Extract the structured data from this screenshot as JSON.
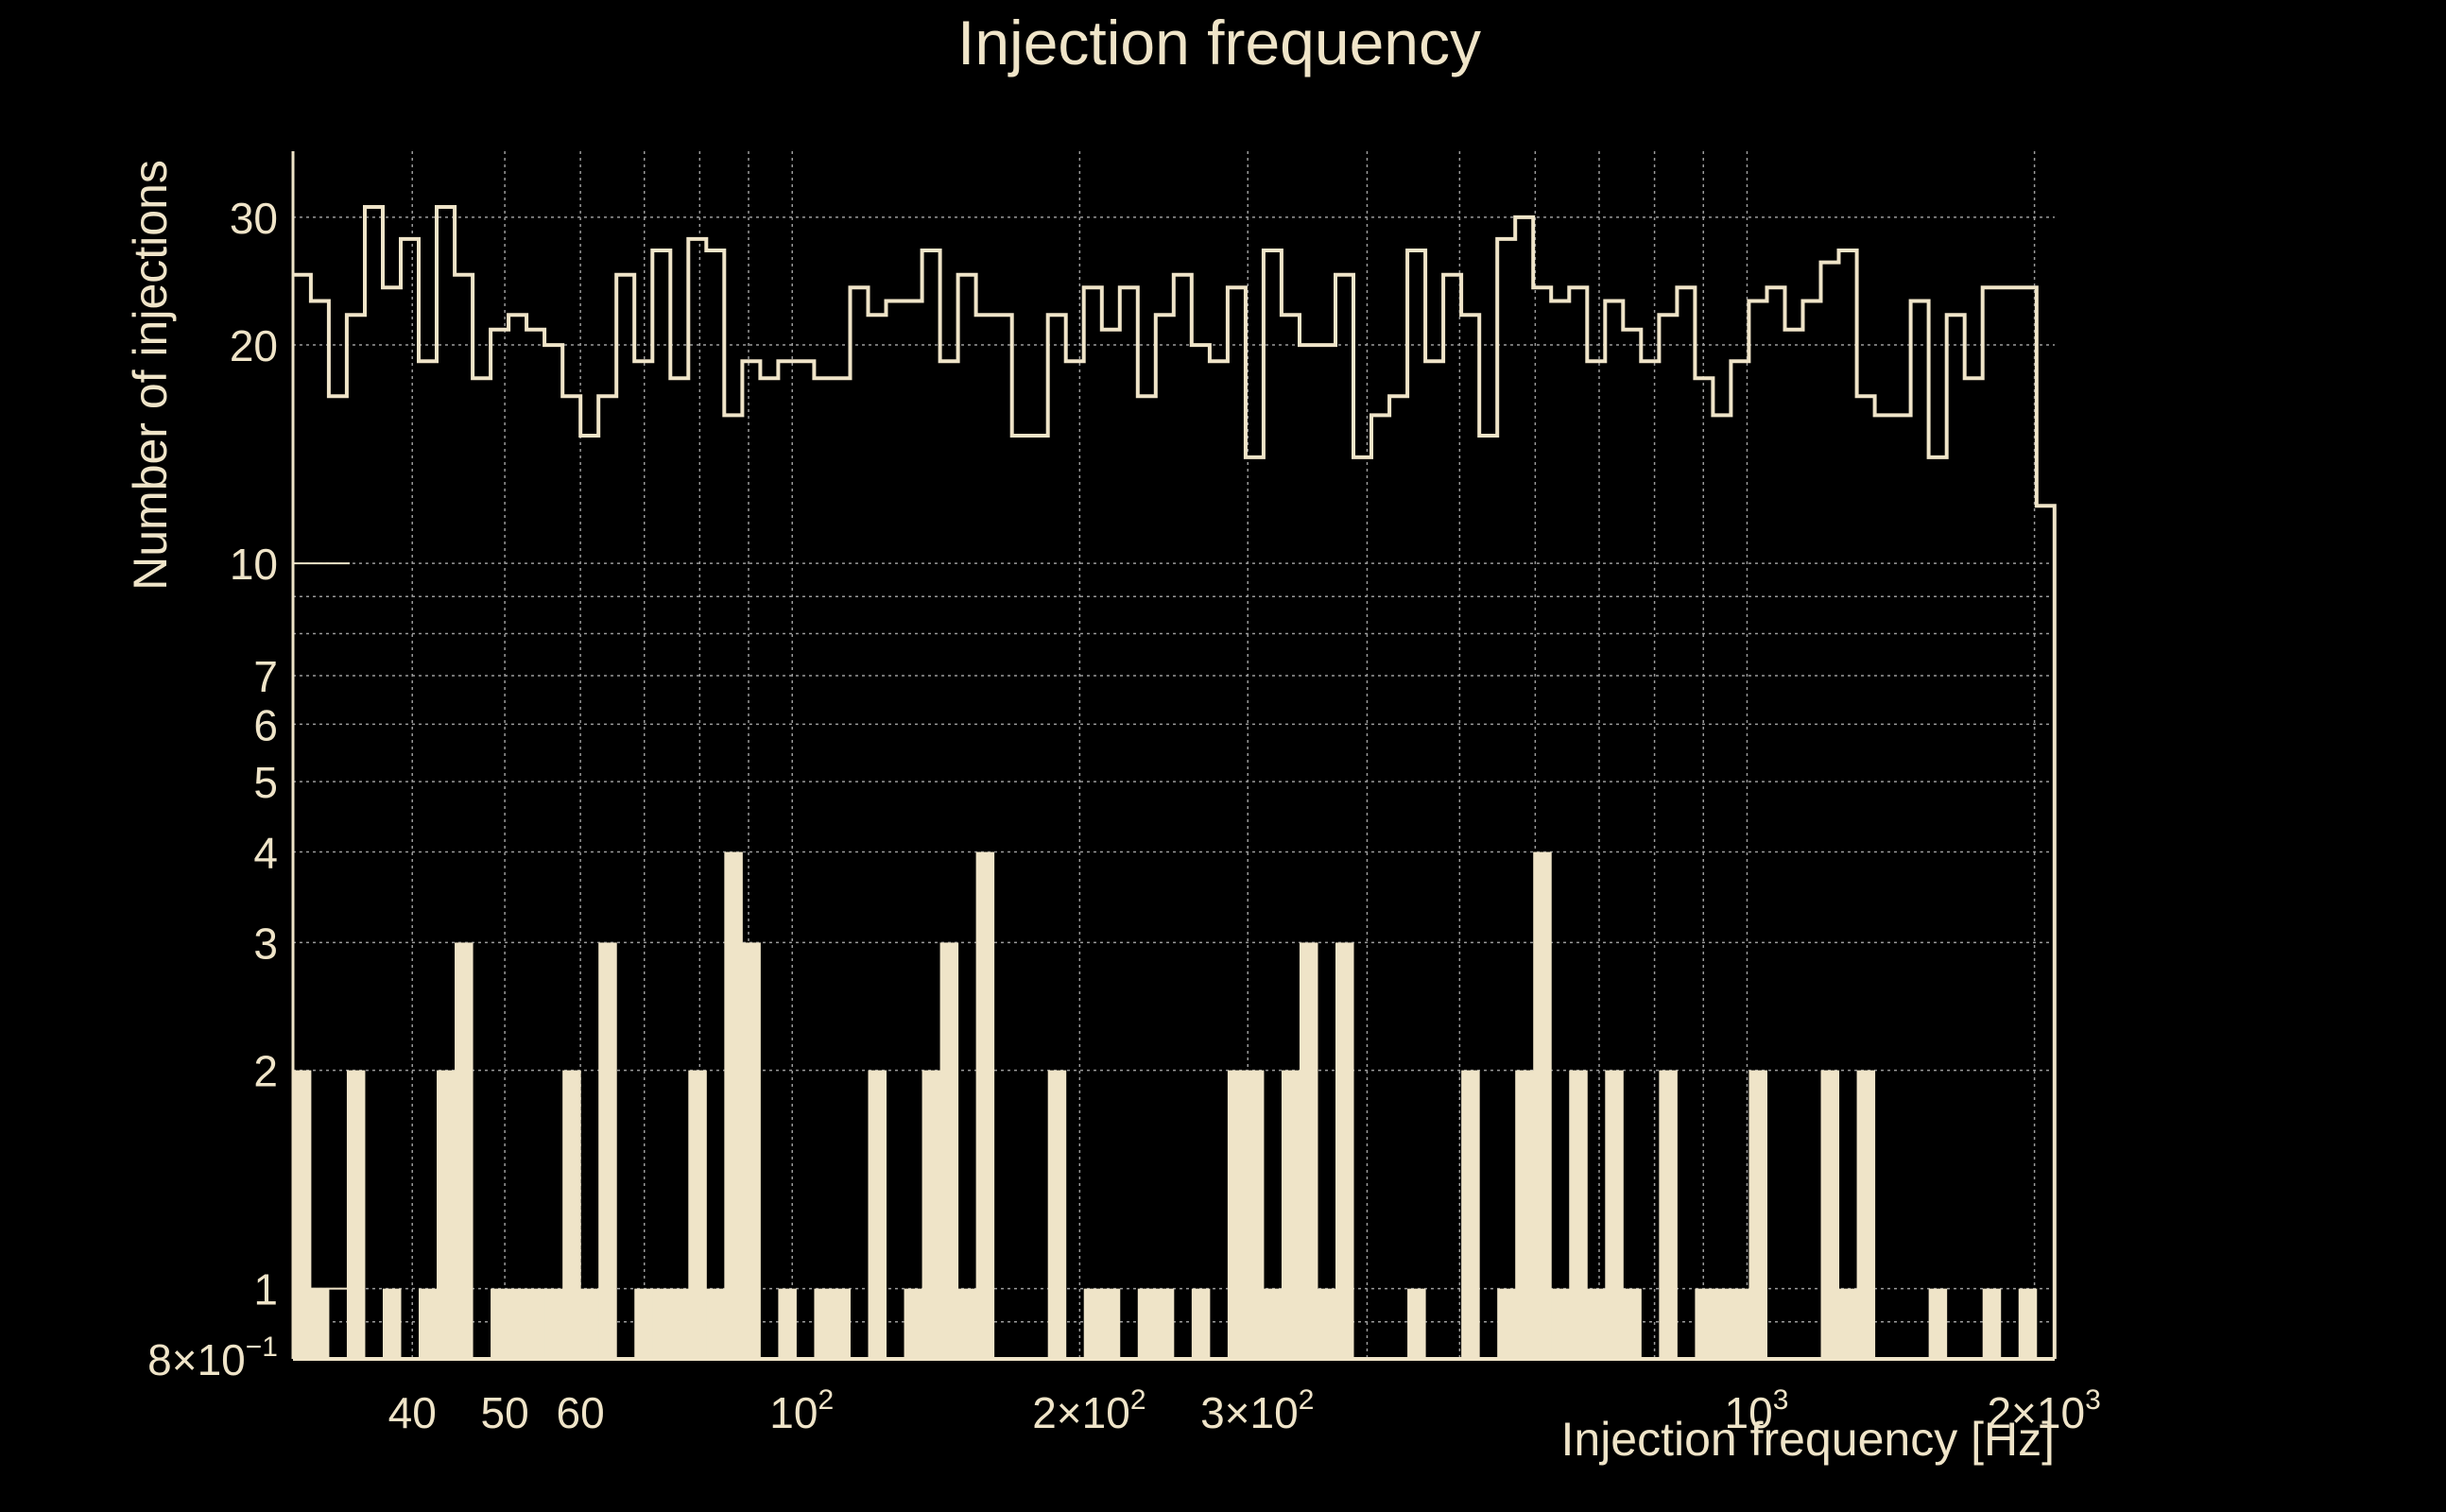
{
  "colors": {
    "background": "#000000",
    "foreground": "#efe4c8",
    "grid": "#9a9a9a"
  },
  "chart_data": {
    "type": "bar",
    "title": "Injection frequency",
    "xlabel": "Injection frequency [Hz]",
    "ylabel": "Number of injections",
    "x_scale": "log",
    "y_scale": "log",
    "xlim": [
      30,
      2100
    ],
    "ylim": [
      0.8,
      37
    ],
    "grid": true,
    "x_ticks": [
      {
        "value": 40,
        "base": "40",
        "exp": ""
      },
      {
        "value": 50,
        "base": "50",
        "exp": ""
      },
      {
        "value": 60,
        "base": "60",
        "exp": ""
      },
      {
        "value": 100,
        "base": "10",
        "exp": "2"
      },
      {
        "value": 200,
        "base": "2×10",
        "exp": "2"
      },
      {
        "value": 300,
        "base": "3×10",
        "exp": "2"
      },
      {
        "value": 1000,
        "base": "10",
        "exp": "3"
      },
      {
        "value": 2000,
        "base": "2×10",
        "exp": "3"
      }
    ],
    "y_ticks": [
      {
        "value": 0.8,
        "base": "8×10",
        "exp": "−1"
      },
      {
        "value": 1,
        "base": "1",
        "exp": ""
      },
      {
        "value": 2,
        "base": "2",
        "exp": ""
      },
      {
        "value": 3,
        "base": "3",
        "exp": ""
      },
      {
        "value": 4,
        "base": "4",
        "exp": ""
      },
      {
        "value": 5,
        "base": "5",
        "exp": ""
      },
      {
        "value": 6,
        "base": "6",
        "exp": ""
      },
      {
        "value": 7,
        "base": "7",
        "exp": ""
      },
      {
        "value": 10,
        "base": "10",
        "exp": ""
      },
      {
        "value": 20,
        "base": "20",
        "exp": ""
      },
      {
        "value": 30,
        "base": "30",
        "exp": ""
      }
    ],
    "bin_edges_log10_start": 1.477,
    "bin_edges_log10_end": 3.322,
    "series": [
      {
        "style": "step",
        "values": [
          25,
          23,
          17,
          22,
          31,
          24,
          28,
          19,
          31,
          25,
          18,
          21,
          22,
          21,
          20,
          17,
          15,
          17,
          25,
          19,
          27,
          18,
          28,
          27,
          16,
          19,
          18,
          19,
          19,
          18,
          18,
          24,
          22,
          23,
          23,
          27,
          19,
          25,
          22,
          22,
          15,
          15,
          22,
          19,
          24,
          21,
          24,
          17,
          22,
          25,
          20,
          19,
          24,
          14,
          27,
          22,
          20,
          20,
          25,
          14,
          16,
          17,
          27,
          19,
          25,
          22,
          15,
          28,
          30,
          24,
          23,
          24,
          19,
          23,
          21,
          19,
          22,
          24,
          18,
          16,
          19,
          23,
          24,
          21,
          23,
          26,
          27,
          17,
          16,
          16,
          23,
          14,
          22,
          18,
          24,
          24,
          24,
          12
        ]
      },
      {
        "style": "filled",
        "values": [
          2,
          1,
          0,
          2,
          0,
          1,
          0,
          1,
          2,
          3,
          0,
          1,
          1,
          1,
          1,
          2,
          1,
          3,
          0,
          1,
          1,
          1,
          2,
          1,
          4,
          3,
          0,
          1,
          0,
          1,
          1,
          0,
          2,
          0,
          1,
          2,
          3,
          1,
          4,
          0,
          0,
          0,
          2,
          0,
          1,
          1,
          0,
          1,
          1,
          0,
          1,
          0,
          2,
          2,
          1,
          2,
          3,
          1,
          3,
          0,
          0,
          0,
          1,
          0,
          0,
          2,
          0,
          1,
          2,
          4,
          1,
          2,
          1,
          2,
          1,
          0,
          2,
          0,
          1,
          1,
          1,
          2,
          0,
          0,
          0,
          2,
          1,
          2,
          0,
          0,
          0,
          1,
          0,
          0,
          1,
          0,
          1,
          0
        ]
      }
    ]
  }
}
